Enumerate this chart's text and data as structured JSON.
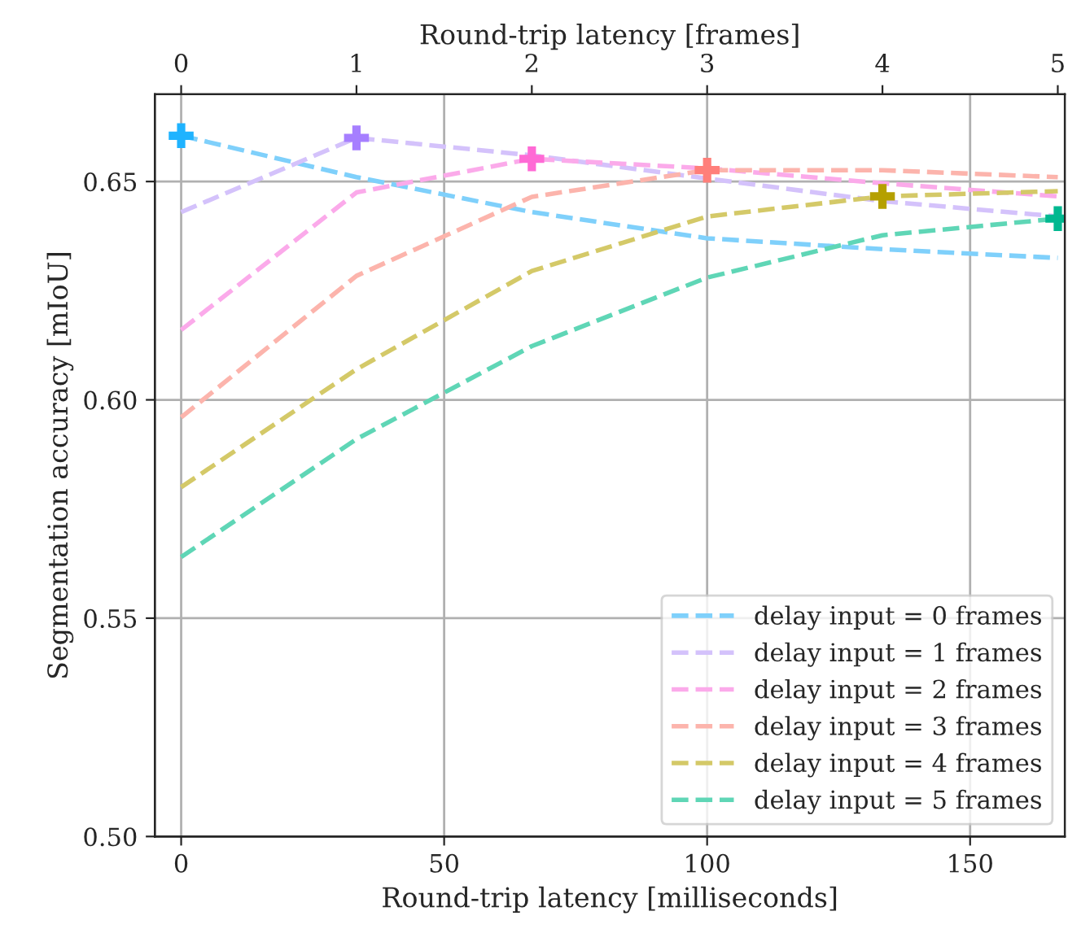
{
  "chart_data": {
    "type": "line",
    "xlabel": "Round-trip latency [milliseconds]",
    "ylabel": "Segmentation accuracy [mIoU]",
    "x2label": "Round-trip latency [frames]",
    "x": [
      0,
      33.33,
      66.67,
      100,
      133.33,
      166.67
    ],
    "series": [
      {
        "name": "delay input = 0 frames",
        "color": "#7fd0fb",
        "values": [
          0.6605,
          0.651,
          0.643,
          0.637,
          0.6345,
          0.6325
        ]
      },
      {
        "name": "delay input = 1 frames",
        "color": "#d4c2fb",
        "values": [
          0.643,
          0.66,
          0.656,
          0.6507,
          0.6455,
          0.642
        ]
      },
      {
        "name": "delay input = 2 frames",
        "color": "#fbaaea",
        "values": [
          0.616,
          0.6475,
          0.6552,
          0.653,
          0.6496,
          0.6466
        ]
      },
      {
        "name": "delay input = 3 frames",
        "color": "#fcb4ac",
        "values": [
          0.596,
          0.6284,
          0.6465,
          0.6526,
          0.6526,
          0.651
        ]
      },
      {
        "name": "delay input = 4 frames",
        "color": "#d4c968",
        "values": [
          0.58,
          0.607,
          0.6295,
          0.642,
          0.6466,
          0.6478
        ]
      },
      {
        "name": "delay input = 5 frames",
        "color": "#5fd6b6",
        "values": [
          0.564,
          0.591,
          0.6123,
          0.628,
          0.6377,
          0.6415
        ]
      },
      {
        "type": "scatter",
        "marker": "cross",
        "colors": [
          "#1fb3ff",
          "#a67fff",
          "#ff6ad5",
          "#ff7f7a",
          "#b5a000",
          "#00b890"
        ],
        "values": [
          0.6605,
          0.66,
          0.6552,
          0.6526,
          0.6466,
          0.6415
        ]
      }
    ],
    "line_style": "dashed",
    "xlim": [
      -5,
      168
    ],
    "xticks": [
      0,
      50,
      100,
      150
    ],
    "x2lim": [
      -0.15,
      5.04
    ],
    "x2ticks": [
      0,
      1,
      2,
      3,
      4,
      5
    ],
    "ylim": [
      0.5,
      0.67
    ],
    "yticks": [
      {
        "value": 0.5,
        "label": "0.50"
      },
      {
        "value": 0.55,
        "label": "0.55"
      },
      {
        "value": 0.6,
        "label": "0.60"
      },
      {
        "value": 0.65,
        "label": "0.65"
      }
    ],
    "grid": true,
    "legend": "bottom right"
  }
}
